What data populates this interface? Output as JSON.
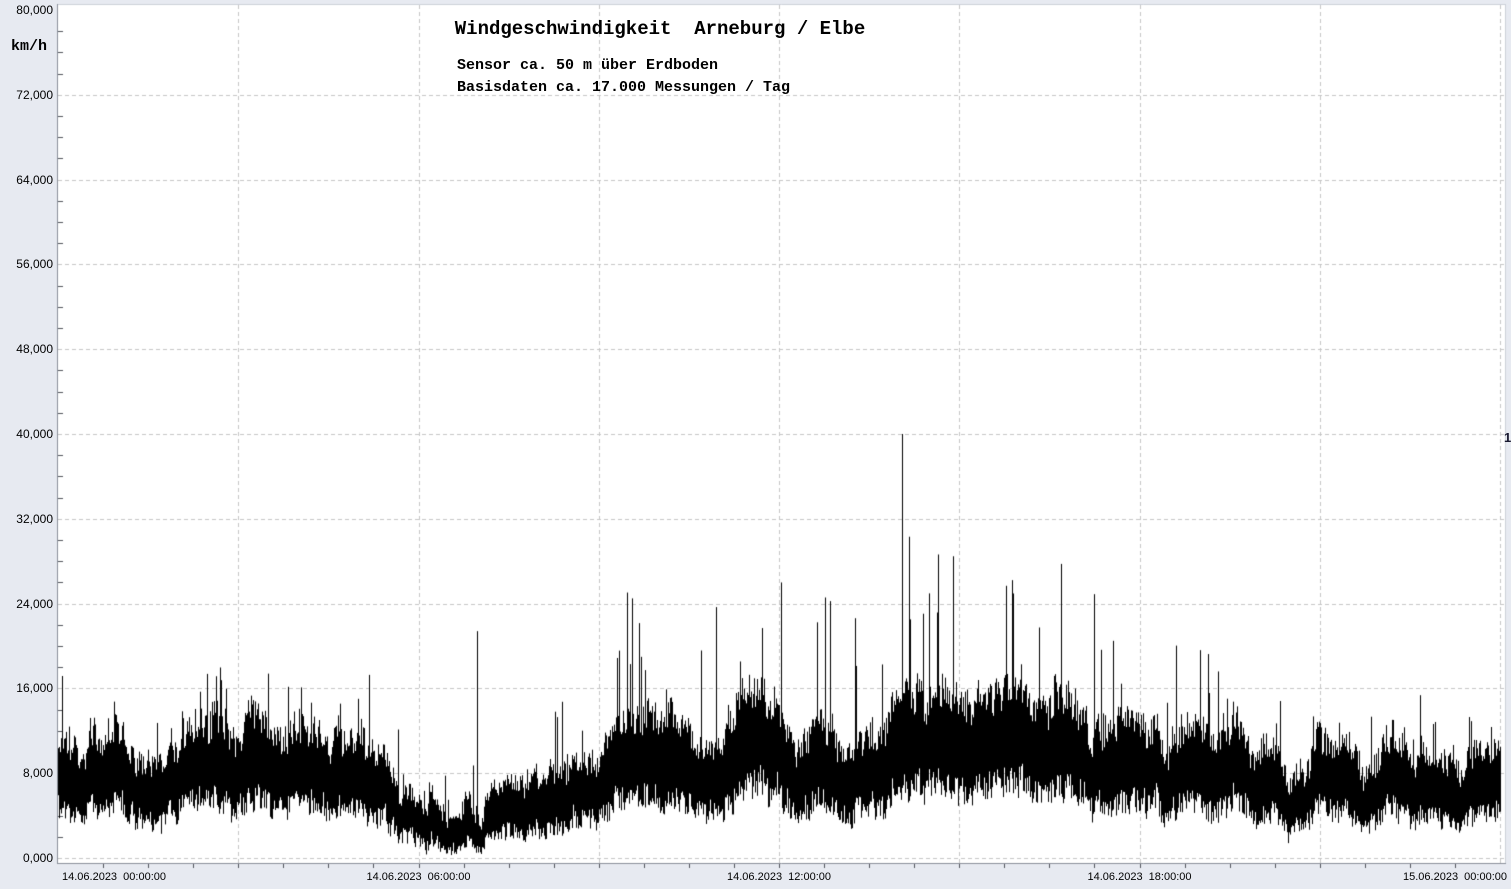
{
  "page": {
    "background_color": "#e7eaf1",
    "plot_background_color": "#ffffff",
    "grid_color": "#c6c6c6",
    "axis_color": "#8b909a",
    "tick_color": "#52555c",
    "series_color": "#000000"
  },
  "artifacts": {
    "right_edge_text": "1"
  },
  "chart_data": {
    "type": "line",
    "title": "Windgeschwindigkeit  Arneburg / Elbe",
    "subtitles": [
      "Sensor ca. 50 m über Erdboden",
      "Basisdaten ca. 17.000 Messungen / Tag"
    ],
    "ylabel": "km/h",
    "xlabel": "",
    "legend": "none",
    "grid": "dashed major gridlines",
    "ylim_kmh": [
      0,
      80
    ],
    "y_axis": {
      "unit": "km/h",
      "min": 0,
      "max": 80,
      "major_step": 8,
      "minor_step": 2,
      "tick_label_format": "comma as decimal separator, 3 decimals",
      "tick_labels_top_to_bottom": [
        "80,000",
        "72,000",
        "64,000",
        "56,000",
        "48,000",
        "40,000",
        "32,000",
        "24,000",
        "16,000",
        "8,000",
        "0,000"
      ]
    },
    "x_axis": {
      "start": "14.06.2023 00:00:00",
      "end": "15.06.2023 00:00:00",
      "span_hours": 24,
      "major_gridline_step_hours": 3,
      "minor_tick_step_minutes": 45,
      "tick_labels": [
        {
          "hour": 0,
          "label": "14.06.2023  00:00:00",
          "align": "left"
        },
        {
          "hour": 6,
          "label": "14.06.2023  06:00:00",
          "align": "center"
        },
        {
          "hour": 12,
          "label": "14.06.2023  12:00:00",
          "align": "center"
        },
        {
          "hour": 18,
          "label": "14.06.2023  18:00:00",
          "align": "center"
        },
        {
          "hour": 24,
          "label": "15.06.2023  00:00:00",
          "align": "right"
        }
      ]
    },
    "series": [
      {
        "name": "Windgeschwindigkeit Arneburg / Elbe",
        "color": "#000000",
        "style": "dense high-frequency measurement trace (ca. 17.000 samples/day), rendered as per-pixel min/max strips",
        "profile_format": [
          "hour",
          "mean_kmh",
          "gust_peak_kmh"
        ],
        "profile": [
          [
            0.0,
            9.0,
            18.5
          ],
          [
            0.3,
            8.0,
            16.0
          ],
          [
            0.8,
            6.5,
            16.5
          ],
          [
            1.3,
            6.0,
            14.0
          ],
          [
            1.8,
            7.5,
            16.0
          ],
          [
            2.2,
            10.0,
            17.0
          ],
          [
            2.6,
            10.5,
            18.5
          ],
          [
            3.0,
            10.0,
            17.0
          ],
          [
            3.5,
            10.0,
            17.5
          ],
          [
            4.0,
            9.5,
            16.5
          ],
          [
            4.3,
            7.0,
            15.5
          ],
          [
            4.8,
            7.5,
            16.5
          ],
          [
            5.1,
            9.5,
            18.5
          ],
          [
            5.4,
            9.0,
            16.5
          ],
          [
            5.7,
            5.0,
            12.0
          ],
          [
            6.0,
            3.5,
            8.0
          ],
          [
            6.5,
            3.2,
            8.0
          ],
          [
            7.0,
            3.7,
            9.0
          ],
          [
            7.4,
            4.5,
            10.0
          ],
          [
            7.8,
            5.5,
            13.0
          ],
          [
            8.2,
            6.5,
            15.0
          ],
          [
            8.7,
            7.5,
            17.0
          ],
          [
            9.2,
            9.0,
            24.0
          ],
          [
            9.5,
            9.5,
            28.5
          ],
          [
            10.0,
            9.0,
            22.0
          ],
          [
            10.4,
            9.5,
            25.5
          ],
          [
            10.8,
            9.5,
            24.5
          ],
          [
            11.2,
            10.0,
            27.5
          ],
          [
            11.6,
            10.5,
            24.0
          ],
          [
            12.0,
            10.0,
            29.5
          ],
          [
            12.3,
            9.5,
            27.0
          ],
          [
            12.6,
            9.0,
            29.0
          ],
          [
            13.0,
            10.0,
            31.5
          ],
          [
            13.3,
            9.0,
            24.0
          ],
          [
            13.7,
            8.5,
            23.5
          ],
          [
            14.0,
            10.0,
            30.0
          ],
          [
            14.3,
            11.0,
            34.0
          ],
          [
            14.6,
            10.5,
            33.5
          ],
          [
            15.0,
            11.0,
            32.5
          ],
          [
            15.3,
            11.5,
            31.5
          ],
          [
            15.7,
            11.0,
            29.5
          ],
          [
            16.0,
            11.0,
            30.5
          ],
          [
            16.4,
            11.5,
            31.0
          ],
          [
            16.8,
            11.0,
            32.5
          ],
          [
            17.2,
            10.0,
            26.5
          ],
          [
            17.6,
            9.0,
            24.5
          ],
          [
            18.0,
            8.5,
            23.5
          ],
          [
            18.4,
            8.0,
            21.0
          ],
          [
            18.8,
            8.5,
            23.5
          ],
          [
            19.2,
            8.0,
            20.0
          ],
          [
            19.6,
            8.0,
            21.5
          ],
          [
            20.0,
            7.5,
            19.0
          ],
          [
            20.6,
            5.5,
            16.0
          ],
          [
            21.0,
            7.0,
            16.5
          ],
          [
            21.5,
            7.0,
            18.0
          ],
          [
            22.0,
            7.5,
            17.5
          ],
          [
            22.5,
            7.0,
            16.0
          ],
          [
            23.0,
            7.0,
            18.5
          ],
          [
            23.5,
            7.5,
            16.5
          ],
          [
            24.0,
            7.0,
            16.5
          ]
        ],
        "peak_events": [
          {
            "hour": 6.97,
            "value_kmh": 21.4
          },
          {
            "hour": 14.05,
            "value_kmh": 40.0
          }
        ]
      }
    ]
  }
}
